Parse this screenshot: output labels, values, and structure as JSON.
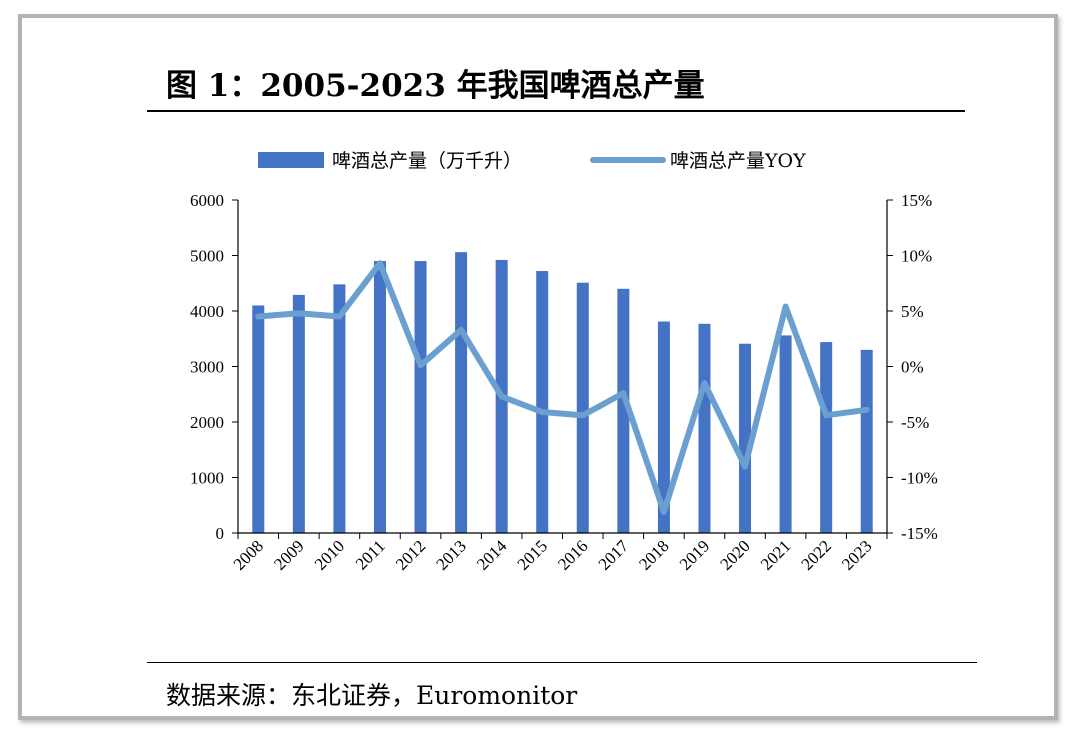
{
  "title": "图 1：2005-2023 年我国啤酒总产量",
  "source": "数据来源：东北证券，Euromonitor",
  "chart_data": {
    "type": "bar",
    "categories": [
      "2008",
      "2009",
      "2010",
      "2011",
      "2012",
      "2013",
      "2014",
      "2015",
      "2016",
      "2017",
      "2018",
      "2019",
      "2020",
      "2021",
      "2022",
      "2023"
    ],
    "series": [
      {
        "name": "啤酒总产量（万千升）",
        "kind": "bar",
        "axis": "left",
        "color": "#4472c4",
        "values": [
          4100,
          4290,
          4480,
          4900,
          4900,
          5060,
          4920,
          4720,
          4510,
          4400,
          3810,
          3770,
          3410,
          3560,
          3440,
          3300
        ]
      },
      {
        "name": "啤酒总产量YOY",
        "kind": "line",
        "axis": "right",
        "color": "#6a9fd0",
        "values": [
          4.5,
          4.8,
          4.5,
          9.3,
          0.1,
          3.3,
          -2.7,
          -4.1,
          -4.4,
          -2.4,
          -13.1,
          -1.5,
          -9.0,
          5.4,
          -4.4,
          -3.9
        ]
      }
    ],
    "y_left": {
      "min": 0,
      "max": 6000,
      "ticks": [
        "0",
        "1000",
        "2000",
        "3000",
        "4000",
        "5000",
        "6000"
      ]
    },
    "y_right": {
      "min": -15,
      "max": 15,
      "ticks": [
        "-15%",
        "-10%",
        "-5%",
        "0%",
        "5%",
        "10%",
        "15%"
      ]
    },
    "grid": false,
    "legend_position": "top"
  }
}
